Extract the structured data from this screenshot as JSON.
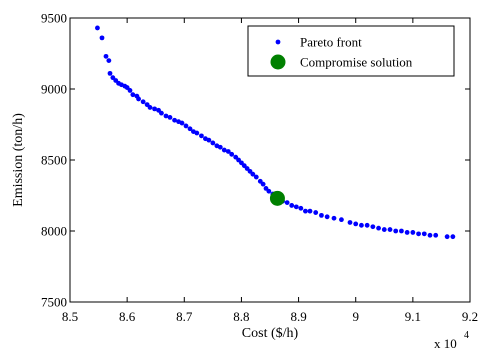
{
  "chart_data": {
    "type": "scatter",
    "xlabel": "Cost ($/h)",
    "ylabel": "Emission (ton/h)",
    "x_multiplier_label": "x 10",
    "x_multiplier_exponent": "4",
    "xlim": [
      8.5,
      9.2
    ],
    "ylim": [
      7500,
      9500
    ],
    "xticks": [
      8.5,
      8.6,
      8.7,
      8.8,
      8.9,
      9.0,
      9.1,
      9.2
    ],
    "xtick_labels": [
      "8.5",
      "8.6",
      "8.7",
      "8.8",
      "8.9",
      "9",
      "9.1",
      "9.2"
    ],
    "yticks": [
      7500,
      8000,
      8500,
      9000,
      9500
    ],
    "ytick_labels": [
      "7500",
      "8000",
      "8500",
      "9000",
      "9500"
    ],
    "grid": false,
    "legend_position": "top-right",
    "series": [
      {
        "name": "Pareto front",
        "color": "#0000ff",
        "marker": "dot",
        "points": [
          [
            8.548,
            9430
          ],
          [
            8.556,
            9360
          ],
          [
            8.563,
            9230
          ],
          [
            8.568,
            9200
          ],
          [
            8.57,
            9110
          ],
          [
            8.575,
            9080
          ],
          [
            8.58,
            9060
          ],
          [
            8.585,
            9040
          ],
          [
            8.59,
            9030
          ],
          [
            8.596,
            9020
          ],
          [
            8.6,
            9010
          ],
          [
            8.605,
            8990
          ],
          [
            8.61,
            8960
          ],
          [
            8.617,
            8950
          ],
          [
            8.62,
            8930
          ],
          [
            8.628,
            8910
          ],
          [
            8.635,
            8890
          ],
          [
            8.64,
            8870
          ],
          [
            8.648,
            8860
          ],
          [
            8.655,
            8850
          ],
          [
            8.66,
            8830
          ],
          [
            8.668,
            8810
          ],
          [
            8.675,
            8800
          ],
          [
            8.683,
            8780
          ],
          [
            8.69,
            8770
          ],
          [
            8.696,
            8760
          ],
          [
            8.703,
            8740
          ],
          [
            8.71,
            8720
          ],
          [
            8.716,
            8700
          ],
          [
            8.722,
            8690
          ],
          [
            8.73,
            8670
          ],
          [
            8.737,
            8650
          ],
          [
            8.743,
            8640
          ],
          [
            8.75,
            8620
          ],
          [
            8.757,
            8600
          ],
          [
            8.763,
            8590
          ],
          [
            8.77,
            8570
          ],
          [
            8.777,
            8560
          ],
          [
            8.783,
            8540
          ],
          [
            8.79,
            8520
          ],
          [
            8.795,
            8500
          ],
          [
            8.8,
            8480
          ],
          [
            8.805,
            8460
          ],
          [
            8.81,
            8440
          ],
          [
            8.815,
            8420
          ],
          [
            8.82,
            8400
          ],
          [
            8.826,
            8380
          ],
          [
            8.833,
            8350
          ],
          [
            8.838,
            8330
          ],
          [
            8.843,
            8300
          ],
          [
            8.848,
            8280
          ],
          [
            8.855,
            8260
          ],
          [
            8.872,
            8210
          ],
          [
            8.88,
            8200
          ],
          [
            8.888,
            8180
          ],
          [
            8.896,
            8170
          ],
          [
            8.904,
            8160
          ],
          [
            8.912,
            8140
          ],
          [
            8.92,
            8140
          ],
          [
            8.93,
            8130
          ],
          [
            8.94,
            8110
          ],
          [
            8.95,
            8100
          ],
          [
            8.962,
            8090
          ],
          [
            8.975,
            8080
          ],
          [
            8.99,
            8060
          ],
          [
            9.0,
            8050
          ],
          [
            9.01,
            8040
          ],
          [
            9.02,
            8040
          ],
          [
            9.03,
            8030
          ],
          [
            9.04,
            8020
          ],
          [
            9.05,
            8010
          ],
          [
            9.06,
            8010
          ],
          [
            9.07,
            8000
          ],
          [
            9.08,
            8000
          ],
          [
            9.09,
            7990
          ],
          [
            9.1,
            7990
          ],
          [
            9.11,
            7980
          ],
          [
            9.12,
            7980
          ],
          [
            9.13,
            7970
          ],
          [
            9.14,
            7970
          ],
          [
            9.16,
            7960
          ],
          [
            9.17,
            7960
          ]
        ]
      },
      {
        "name": "Compromise solution",
        "color": "#008000",
        "marker": "circle",
        "points": [
          [
            8.863,
            8230
          ]
        ]
      }
    ]
  }
}
